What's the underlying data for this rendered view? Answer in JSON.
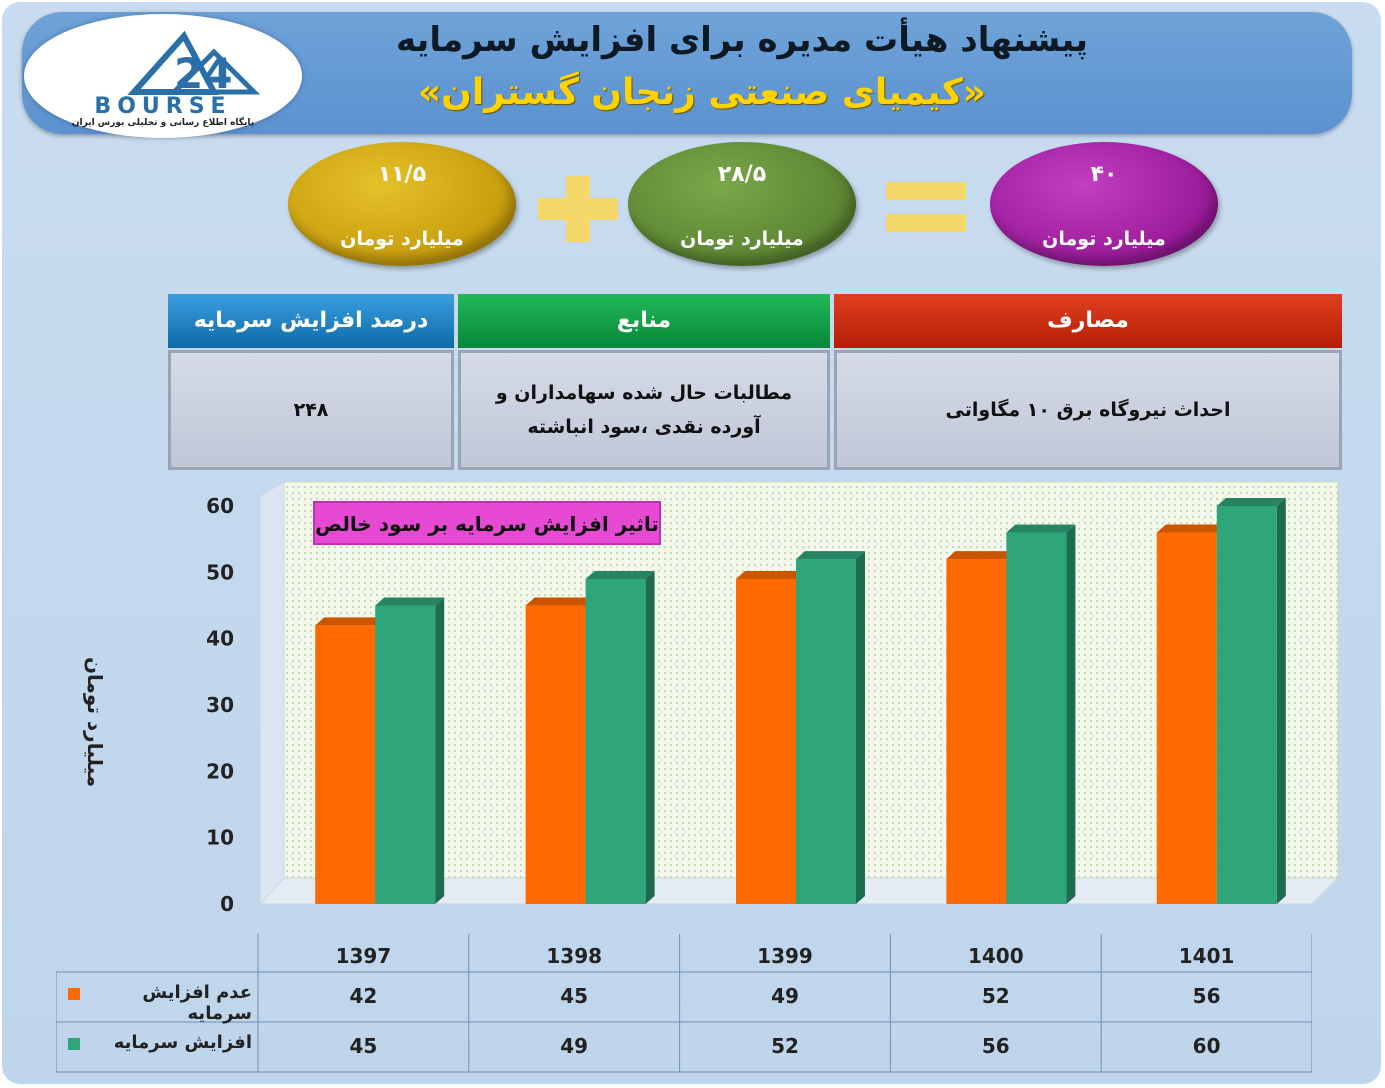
{
  "header": {
    "title": "پیشنهاد هیأت مدیره برای افزایش سرمایه",
    "company": "«کیمیای صنعتی زنجان گستران»"
  },
  "logo": {
    "word": "BOURSE",
    "subtitle": "پایگاه اطلاع رسانی و تحلیلی بورس ایران",
    "mark_number": "24"
  },
  "equation": {
    "total": {
      "value": "۴۰",
      "unit": "میلیارد تومان",
      "color": "#9b0f9b"
    },
    "part1": {
      "value": "۲۸/۵",
      "unit": "میلیارد تومان",
      "color": "#5e8a32"
    },
    "part2": {
      "value": "۱۱/۵",
      "unit": "میلیارد تومان",
      "color": "#c49a00"
    },
    "operator_plus": "plus-sign",
    "operator_equals": "equals-sign"
  },
  "info_table": {
    "headers": {
      "uses": "مصارف",
      "sources": "منابع",
      "percent": "درصد افزایش سرمایه"
    },
    "values": {
      "uses": "احداث نیروگاه برق ۱۰ مگاواتی",
      "sources_line1": "مطالبات حال شده سهامداران و",
      "sources_line2": "آورده نقدی ،سود انباشته",
      "percent": "۲۴۸"
    },
    "colors": {
      "uses": "#c8260a",
      "sources": "#0a9a3c",
      "percent": "#1a7ec4"
    }
  },
  "chart_data": {
    "type": "bar",
    "title": "تاثیر افزایش سرمایه بر سود خالص",
    "ylabel": "میلیارد تومان",
    "xlabel": "",
    "ylim": [
      0,
      60
    ],
    "yticks": [
      "0",
      "10",
      "20",
      "30",
      "40",
      "50",
      "60"
    ],
    "categories": [
      "1397",
      "1398",
      "1399",
      "1400",
      "1401"
    ],
    "series": [
      {
        "name": "عدم افزایش سرمایه",
        "values": [
          42,
          45,
          49,
          52,
          56
        ],
        "color": "#ff6a00"
      },
      {
        "name": "افزایش سرمایه",
        "values": [
          45,
          49,
          52,
          56,
          60
        ],
        "color": "#2fa57a"
      }
    ],
    "grid": false,
    "legend": "data-table"
  }
}
